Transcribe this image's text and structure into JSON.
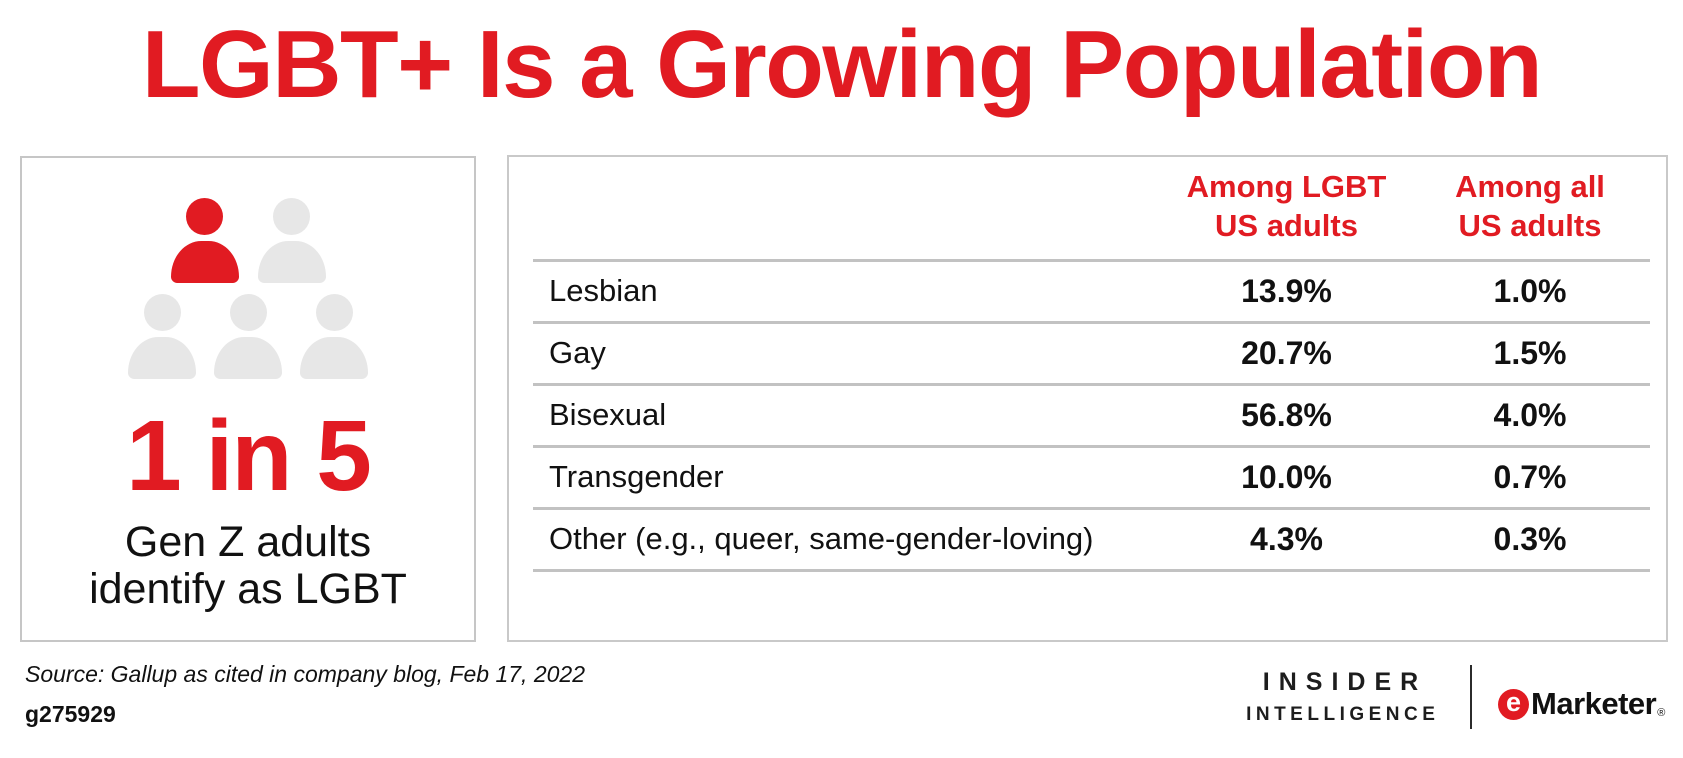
{
  "title": "LGBT+ Is a Growing Population",
  "colors": {
    "accent_red": "#e11b22",
    "icon_gray": "#e7e7e7",
    "divider_gray": "#c2c2c2",
    "panel_border_gray": "#c9c9c9",
    "text_black": "#111111"
  },
  "stat_panel": {
    "big_value": "1 in 5",
    "caption": "Gen Z adults\nidentify as LGBT",
    "icons_total": 5,
    "icons_highlighted": 1
  },
  "chart_data": {
    "type": "table",
    "title": "LGBT+ Is a Growing Population",
    "columns": [
      "",
      "Among LGBT\nUS adults",
      "Among all\nUS adults"
    ],
    "rows": [
      {
        "label": "Lesbian",
        "among_lgbt": "13.9%",
        "among_all": "1.0%"
      },
      {
        "label": "Gay",
        "among_lgbt": "20.7%",
        "among_all": "1.5%"
      },
      {
        "label": "Bisexual",
        "among_lgbt": "56.8%",
        "among_all": "4.0%"
      },
      {
        "label": "Transgender",
        "among_lgbt": "10.0%",
        "among_all": "0.7%"
      },
      {
        "label": "Other (e.g., queer, same-gender-loving)",
        "among_lgbt": "4.3%",
        "among_all": "0.3%"
      }
    ],
    "callout": {
      "value": "1 in 5",
      "caption": "Gen Z adults identify as LGBT"
    }
  },
  "footer": {
    "source": "Source: Gallup as cited in company blog, Feb 17, 2022",
    "chart_id": "g275929",
    "brands": {
      "insider_line1": "INSIDER",
      "insider_line2": "INTELLIGENCE",
      "emarketer_e": "e",
      "emarketer_rest": "Marketer",
      "registered_mark": "®"
    }
  }
}
